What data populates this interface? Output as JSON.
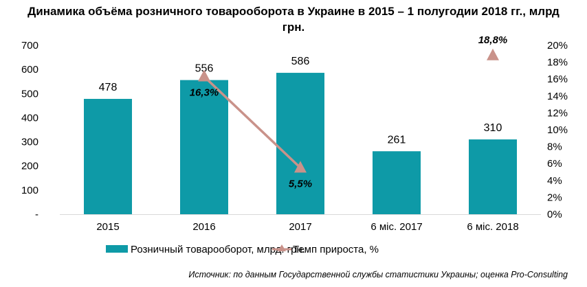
{
  "chart_data": {
    "type": "bar+line",
    "title_line1": "Динамика объёма розничного товарооборота в Украине в 2015 – 1 полугодии 2018 гг., млрд",
    "title_line2": "грн.",
    "categories": [
      "2015",
      "2016",
      "2017",
      "6 міс. 2017",
      "6 міс. 2018"
    ],
    "series": [
      {
        "name": "Розничный товарооборот, млрд. грн.",
        "type": "bar",
        "axis": "left",
        "color": "#0e9aa7",
        "values": [
          478,
          556,
          586,
          261,
          310
        ],
        "labels": [
          "478",
          "556",
          "586",
          "261",
          "310"
        ]
      },
      {
        "name": "Темп прироста, %",
        "type": "line",
        "axis": "right",
        "color": "#c9928a",
        "values": [
          null,
          16.3,
          5.5,
          null,
          18.8
        ],
        "labels": [
          "",
          "16,3%",
          "5,5%",
          "",
          "18,8%"
        ]
      }
    ],
    "left_axis": {
      "ylim": [
        0,
        700
      ],
      "ticks": [
        "-",
        "100",
        "200",
        "300",
        "400",
        "500",
        "600",
        "700"
      ]
    },
    "right_axis": {
      "ylim": [
        0,
        20
      ],
      "ticks": [
        "0%",
        "2%",
        "4%",
        "6%",
        "8%",
        "10%",
        "12%",
        "14%",
        "16%",
        "18%",
        "20%"
      ]
    },
    "grid": false,
    "legend_position": "bottom",
    "source": "Источник: по данным Государственной службы статистики Украины; оценка Pro-Consulting"
  }
}
